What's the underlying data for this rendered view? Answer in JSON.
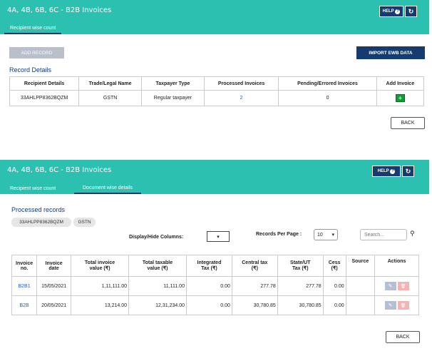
{
  "panel1": {
    "title": "4A, 4B, 6B, 6C - B2B Invoices",
    "help_label": "HELP",
    "help_icon": "?",
    "refresh_icon": "↻",
    "tab_recipient": "Recipient wise count",
    "add_record_label": "ADD RECORD",
    "import_label": "IMPORT EWB DATA",
    "section_title": "Record Details",
    "columns": [
      "Recipient Details",
      "Trade/Legal Name",
      "Taxpayer Type",
      "Processed Invoices",
      "Pending/Errored Invoices",
      "Add Invoice"
    ],
    "row": {
      "recipient": "33AHLPP8362BQZM",
      "trade": "GSTN",
      "type": "Regular taxpayer",
      "processed": "2",
      "pending": "0",
      "add_icon": "+"
    },
    "back_label": "BACK"
  },
  "panel2": {
    "title": "4A, 4B, 6B, 6C - B2B Invoices",
    "help_label": "HELP",
    "help_icon": "?",
    "refresh_icon": "↻",
    "tab_recipient": "Recipient wise count",
    "tab_document": "Document wise details",
    "section_title": "Processed records",
    "chip_gstin": "33AHLPP8362BQZM",
    "chip_name": "GSTN",
    "display_hide_label": "Display/Hide Columns:",
    "dropdown_arrow": "▾",
    "records_per_page_label": "Records Per Page :",
    "records_per_page_value": "10",
    "search_placeholder": "Search...",
    "search_icon": "⚲",
    "columns": [
      [
        "Invoice",
        "no."
      ],
      [
        "Invoice",
        "date"
      ],
      [
        "Total invoice",
        "value (₹)"
      ],
      [
        "Total taxable",
        "value (₹)"
      ],
      [
        "Integrated",
        "Tax (₹)"
      ],
      [
        "Central tax",
        "(₹)"
      ],
      [
        "State/UT",
        "Tax (₹)"
      ],
      [
        "Cess",
        "(₹)"
      ],
      [
        "Source",
        ""
      ],
      [
        "Actions",
        ""
      ]
    ],
    "rows": [
      {
        "no": "B2B1",
        "date": "15/05/2021",
        "total": "1,11,111.00",
        "taxable": "11,111.00",
        "igst": "0.00",
        "cgst": "277.78",
        "sgst": "277.78",
        "cess": "0.00",
        "source": ""
      },
      {
        "no": "B2B",
        "date": "20/05/2021",
        "total": "13,214.00",
        "taxable": "12,31,234.00",
        "igst": "0.00",
        "cgst": "30,780.85",
        "sgst": "30,780.85",
        "cess": "0.00",
        "source": ""
      }
    ],
    "edit_icon": "✎",
    "delete_icon": "🗑",
    "back_label": "BACK"
  },
  "colors": {
    "header": "#2bc0b0",
    "navy": "#163b6f",
    "link": "#2a5eb5",
    "add_green": "#159b3a"
  }
}
